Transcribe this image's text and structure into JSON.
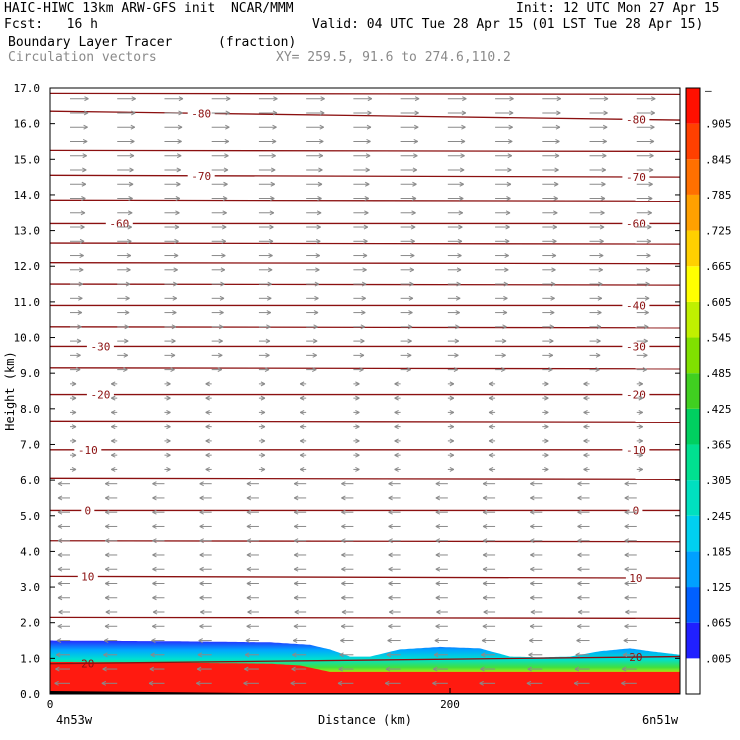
{
  "header": {
    "title_left": "HAIC-HIWC 13km ARW-GFS init  NCAR/MMM",
    "init": "Init: 12 UTC Mon 27 Apr 15",
    "fcst": "Fcst:   16 h",
    "valid": "Valid: 04 UTC Tue 28 Apr 15 (01 LST Tue 28 Apr 15)",
    "field_name": "Boundary Layer Tracer",
    "field_units": "(fraction)",
    "vector_label": "Circulation vectors",
    "xy_range": "XY= 259.5, 91.6 to 274.6,110.2"
  },
  "colors": {
    "contour": "#8b1010",
    "vector": "#8a8a8a"
  },
  "chart_data": {
    "type": "area",
    "title": "Boundary Layer Tracer",
    "xlabel": "Distance (km)",
    "ylabel": "Height (km)",
    "x_endpoint_left": "4n53w",
    "x_endpoint_right": "6n51w",
    "xlim": [
      0,
      315
    ],
    "ylim": [
      0,
      17
    ],
    "xticks": [
      0,
      200
    ],
    "yticks": [
      0.0,
      1.0,
      2.0,
      3.0,
      4.0,
      5.0,
      6.0,
      7.0,
      8.0,
      9.0,
      10.0,
      11.0,
      12.0,
      13.0,
      14.0,
      15.0,
      16.0,
      17.0
    ],
    "colorbar": {
      "labels": [
        ".005",
        ".065",
        ".125",
        ".185",
        ".245",
        ".305",
        ".365",
        ".425",
        ".485",
        ".545",
        ".605",
        ".665",
        ".725",
        ".785",
        ".845",
        ".905"
      ],
      "top_label": "–",
      "colors": [
        "#ffffff",
        "#2020ff",
        "#0060ff",
        "#00a0ff",
        "#00d0f0",
        "#00e0c0",
        "#00e090",
        "#00d060",
        "#40d020",
        "#80e000",
        "#c0f000",
        "#ffff00",
        "#ffd000",
        "#ffa000",
        "#ff7000",
        "#ff4000",
        "#ff1000"
      ]
    },
    "tracer_top": {
      "x": [
        0,
        60,
        110,
        130,
        140,
        150,
        160,
        175,
        195,
        215,
        230,
        245,
        260,
        275,
        290,
        300,
        315
      ],
      "y": [
        1.5,
        1.48,
        1.45,
        1.38,
        1.25,
        1.05,
        1.05,
        1.25,
        1.32,
        1.28,
        1.05,
        1.03,
        1.05,
        1.2,
        1.28,
        1.2,
        1.1
      ]
    },
    "red_top": {
      "x": [
        0,
        60,
        110,
        125,
        140,
        315
      ],
      "y": [
        0.9,
        0.88,
        0.85,
        0.8,
        0.62,
        0.62
      ]
    },
    "contours": [
      {
        "label": "-80",
        "y0": 16.35,
        "y1": 16.1,
        "label_pos": [
          0.24,
          0.93
        ]
      },
      {
        "label": "-70",
        "y0": 14.55,
        "y1": 14.5,
        "label_pos": [
          0.24,
          0.93
        ]
      },
      {
        "label": "-60",
        "y0": 13.2,
        "y1": 13.2,
        "label_pos": [
          0.11,
          0.93
        ]
      },
      {
        "label": "-40",
        "y0": 10.9,
        "y1": 10.9,
        "label_pos": [
          0.93
        ]
      },
      {
        "label": "-30",
        "y0": 9.75,
        "y1": 9.75,
        "label_pos": [
          0.08,
          0.93
        ]
      },
      {
        "label": "-20",
        "y0": 8.4,
        "y1": 8.4,
        "label_pos": [
          0.08,
          0.93
        ]
      },
      {
        "label": "-10",
        "y0": 6.85,
        "y1": 6.85,
        "label_pos": [
          0.06,
          0.93
        ]
      },
      {
        "label": "0",
        "y0": 5.15,
        "y1": 5.15,
        "label_pos": [
          0.06,
          0.93
        ]
      },
      {
        "label": "10",
        "y0": 3.3,
        "y1": 3.25,
        "label_pos": [
          0.06,
          0.93
        ]
      },
      {
        "label": "20",
        "y0": 0.85,
        "y1": 1.05,
        "label_pos": [
          0.06,
          0.93
        ]
      }
    ],
    "unlabeled_contours": [
      16.85,
      15.25,
      13.85,
      12.65,
      12.1,
      11.5,
      10.3,
      9.15,
      7.65,
      6.05,
      4.3,
      2.15
    ]
  }
}
